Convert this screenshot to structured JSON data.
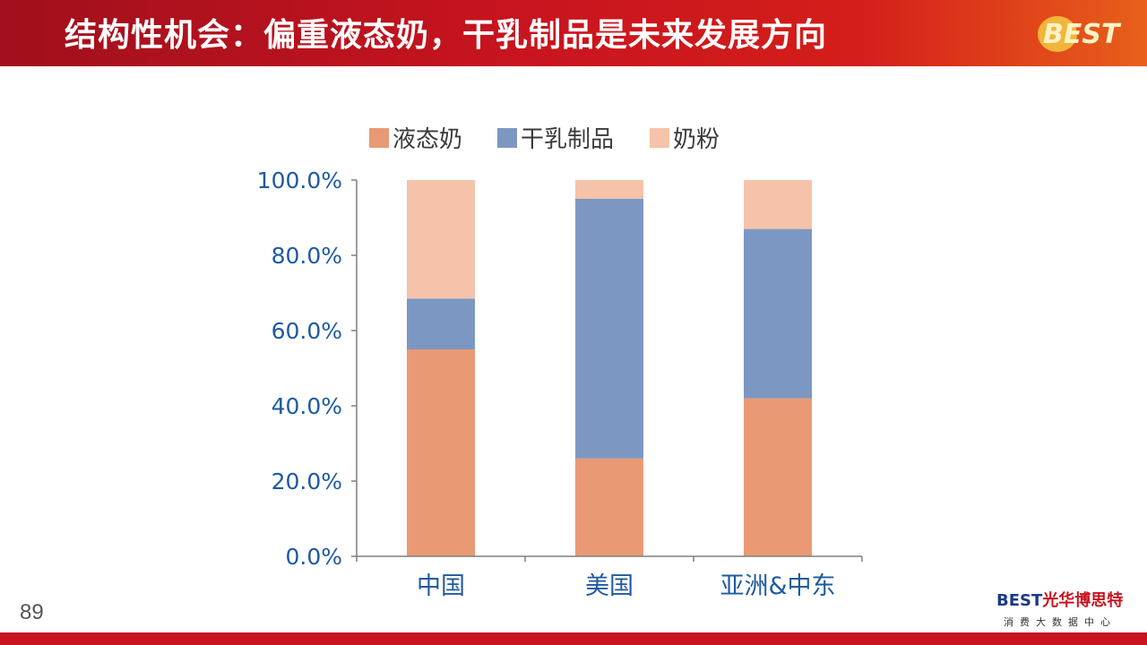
{
  "slide": {
    "title": "结构性机会：偏重液态奶，干乳制品是未来发展方向",
    "page_number": "89",
    "logo_text": "BEST",
    "brand_en": "BEST",
    "brand_cn": "光华博思特",
    "brand_sub": "消费大数据中心"
  },
  "colors": {
    "header_red": "#c8141f",
    "liquid_milk": "#e99a74",
    "dry_dairy": "#7d97c3",
    "milk_powder": "#f4c3a9",
    "axis_text": "#1f5aa0"
  },
  "chart_data": {
    "type": "bar",
    "stacked": true,
    "categories": [
      "中国",
      "美国",
      "亚洲&中东"
    ],
    "series": [
      {
        "name": "液态奶",
        "values": [
          55,
          26,
          42
        ],
        "color": "#e99a74"
      },
      {
        "name": "干乳制品",
        "values": [
          13.5,
          69,
          45
        ],
        "color": "#7d97c3"
      },
      {
        "name": "奶粉",
        "values": [
          31.5,
          5,
          13
        ],
        "color": "#f4c3a9"
      }
    ],
    "ylim": [
      0,
      100
    ],
    "yticks": [
      0,
      20,
      40,
      60,
      80,
      100
    ],
    "ytick_labels": [
      "0.0%",
      "20.0%",
      "40.0%",
      "60.0%",
      "80.0%",
      "100.0%"
    ],
    "legend_position": "top",
    "grid": false
  }
}
